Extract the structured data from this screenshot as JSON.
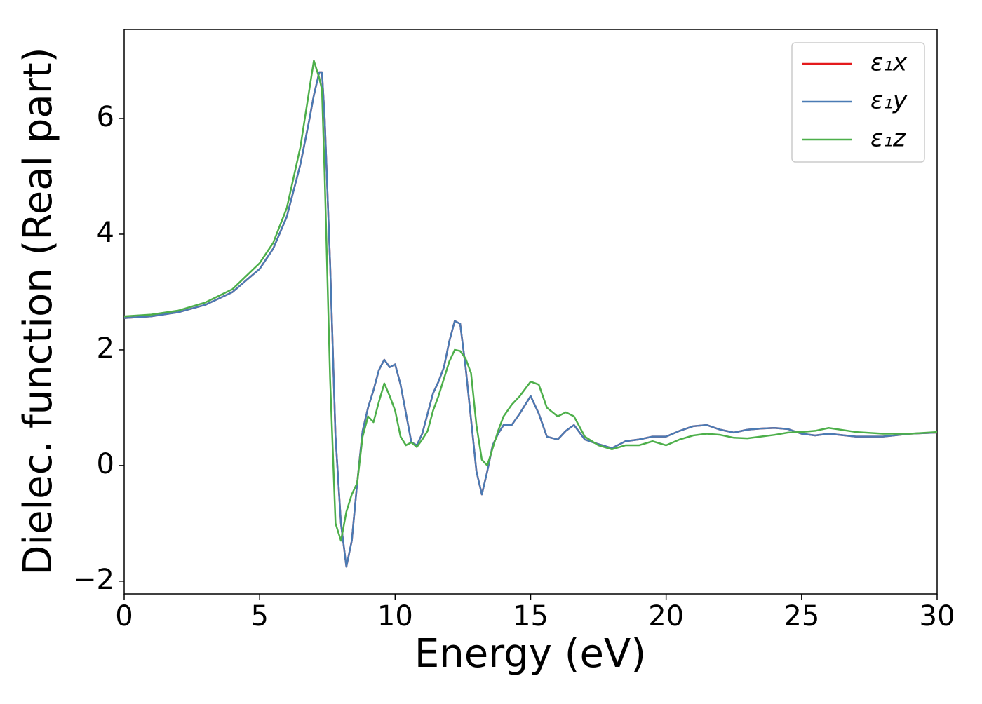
{
  "chart_data": {
    "type": "line",
    "x_label": "Energy (eV)",
    "y_label": "Dielec. function (Real part)",
    "x": [
      0,
      1,
      2,
      3,
      4,
      5,
      5.5,
      6,
      6.5,
      6.8,
      7.0,
      7.2,
      7.3,
      7.4,
      7.6,
      7.8,
      8.0,
      8.2,
      8.4,
      8.6,
      8.8,
      9.0,
      9.2,
      9.4,
      9.6,
      9.8,
      10.0,
      10.2,
      10.4,
      10.6,
      10.8,
      11.0,
      11.2,
      11.4,
      11.6,
      11.8,
      12.0,
      12.2,
      12.4,
      12.6,
      12.8,
      13.0,
      13.2,
      13.4,
      13.6,
      13.8,
      14.0,
      14.3,
      14.6,
      15.0,
      15.3,
      15.6,
      16.0,
      16.3,
      16.6,
      17.0,
      17.5,
      18.0,
      18.5,
      19.0,
      19.5,
      20.0,
      20.5,
      21.0,
      21.5,
      22.0,
      22.5,
      23.0,
      23.5,
      24.0,
      24.5,
      25.0,
      25.5,
      26.0,
      27,
      28,
      29,
      30
    ],
    "series": [
      {
        "name": "ε₁x",
        "color": "#e41a1c",
        "values": [
          2.55,
          2.58,
          2.65,
          2.78,
          3.0,
          3.4,
          3.75,
          4.3,
          5.2,
          5.9,
          6.4,
          6.8,
          6.8,
          6.0,
          3.5,
          0.5,
          -1.0,
          -1.75,
          -1.3,
          -0.3,
          0.6,
          1.0,
          1.3,
          1.65,
          1.83,
          1.7,
          1.75,
          1.4,
          0.9,
          0.4,
          0.35,
          0.55,
          0.9,
          1.25,
          1.45,
          1.7,
          2.15,
          2.5,
          2.45,
          1.7,
          0.8,
          -0.1,
          -0.5,
          -0.1,
          0.35,
          0.55,
          0.7,
          0.7,
          0.9,
          1.2,
          0.9,
          0.5,
          0.45,
          0.6,
          0.7,
          0.45,
          0.37,
          0.3,
          0.42,
          0.45,
          0.5,
          0.5,
          0.6,
          0.68,
          0.7,
          0.62,
          0.57,
          0.62,
          0.64,
          0.65,
          0.63,
          0.55,
          0.52,
          0.55,
          0.5,
          0.5,
          0.55,
          0.57
        ]
      },
      {
        "name": "ε₁y",
        "color": "#4a7bb4",
        "values": [
          2.55,
          2.58,
          2.65,
          2.78,
          3.0,
          3.4,
          3.75,
          4.3,
          5.2,
          5.9,
          6.4,
          6.8,
          6.8,
          6.0,
          3.5,
          0.5,
          -1.0,
          -1.75,
          -1.3,
          -0.3,
          0.6,
          1.0,
          1.3,
          1.65,
          1.83,
          1.7,
          1.75,
          1.4,
          0.9,
          0.4,
          0.35,
          0.55,
          0.9,
          1.25,
          1.45,
          1.7,
          2.15,
          2.5,
          2.45,
          1.7,
          0.8,
          -0.1,
          -0.5,
          -0.1,
          0.35,
          0.55,
          0.7,
          0.7,
          0.9,
          1.2,
          0.9,
          0.5,
          0.45,
          0.6,
          0.7,
          0.45,
          0.37,
          0.3,
          0.42,
          0.45,
          0.5,
          0.5,
          0.6,
          0.68,
          0.7,
          0.62,
          0.57,
          0.62,
          0.64,
          0.65,
          0.63,
          0.55,
          0.52,
          0.55,
          0.5,
          0.5,
          0.55,
          0.57
        ]
      },
      {
        "name": "ε₁z",
        "color": "#4daf4a",
        "values": [
          2.58,
          2.61,
          2.68,
          2.82,
          3.05,
          3.5,
          3.85,
          4.45,
          5.5,
          6.4,
          7.0,
          6.7,
          6.5,
          5.0,
          1.5,
          -1.0,
          -1.3,
          -0.8,
          -0.5,
          -0.3,
          0.5,
          0.85,
          0.75,
          1.1,
          1.42,
          1.2,
          0.95,
          0.5,
          0.35,
          0.4,
          0.32,
          0.45,
          0.6,
          0.95,
          1.2,
          1.5,
          1.8,
          2.0,
          1.98,
          1.85,
          1.6,
          0.7,
          0.1,
          0.0,
          0.3,
          0.6,
          0.85,
          1.05,
          1.2,
          1.45,
          1.4,
          1.0,
          0.85,
          0.92,
          0.85,
          0.5,
          0.35,
          0.28,
          0.35,
          0.35,
          0.42,
          0.35,
          0.45,
          0.52,
          0.55,
          0.53,
          0.48,
          0.47,
          0.5,
          0.53,
          0.57,
          0.58,
          0.6,
          0.65,
          0.58,
          0.55,
          0.55,
          0.58
        ]
      }
    ],
    "xlim": [
      0,
      30
    ],
    "xticks": [
      0,
      5,
      10,
      15,
      20,
      25,
      30
    ],
    "ylim": [
      -2.22,
      7.54
    ],
    "yticks": [
      {
        "value": -2,
        "label": "−2"
      },
      0,
      2,
      4,
      6
    ],
    "legend": "upper right",
    "grid": false
  }
}
